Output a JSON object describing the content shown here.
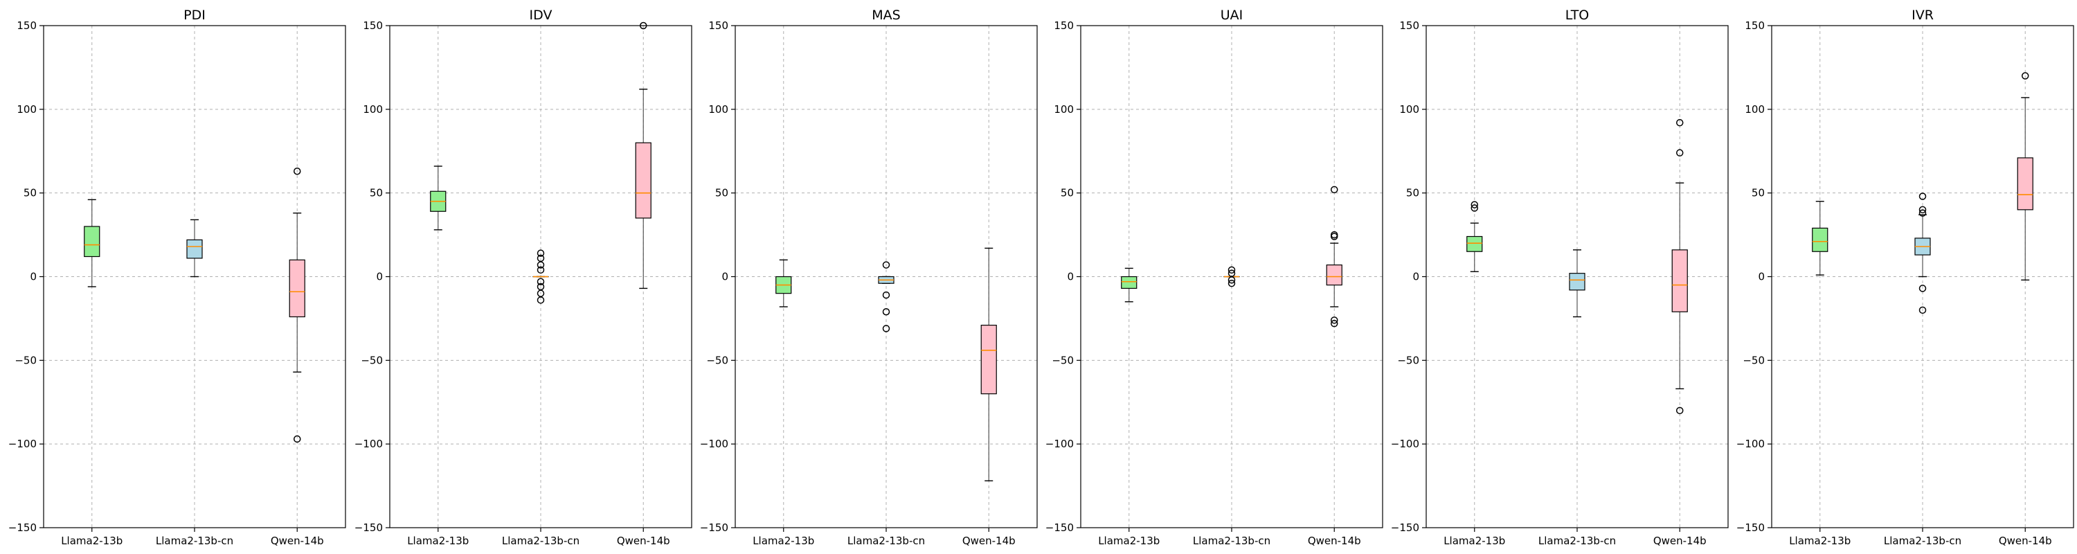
{
  "chart_data": [
    {
      "type": "box",
      "title": "PDI",
      "categories": [
        "Llama2-13b",
        "Llama2-13b-cn",
        "Qwen-14b"
      ],
      "ylim": [
        -150,
        150
      ],
      "yticks": [
        -150,
        -100,
        -50,
        0,
        50,
        100,
        150
      ],
      "grid": true,
      "box_colors": [
        "#90EE90",
        "#ADD8E6",
        "#FFC0CB"
      ],
      "median_color": "#FF8C00",
      "series": [
        {
          "whisker_low": -6,
          "q1": 12,
          "median": 19,
          "q3": 30,
          "whisker_high": 46,
          "outliers": []
        },
        {
          "whisker_low": 0,
          "q1": 11,
          "median": 18,
          "q3": 22,
          "whisker_high": 34,
          "outliers": []
        },
        {
          "whisker_low": -57,
          "q1": -24,
          "median": -9,
          "q3": 10,
          "whisker_high": 38,
          "outliers": [
            63,
            -97
          ]
        }
      ]
    },
    {
      "type": "box",
      "title": "IDV",
      "categories": [
        "Llama2-13b",
        "Llama2-13b-cn",
        "Qwen-14b"
      ],
      "ylim": [
        -150,
        150
      ],
      "yticks": [
        -150,
        -100,
        -50,
        0,
        50,
        100,
        150
      ],
      "grid": true,
      "box_colors": [
        "#90EE90",
        "#ADD8E6",
        "#FFC0CB"
      ],
      "median_color": "#FF8C00",
      "series": [
        {
          "whisker_low": 28,
          "q1": 39,
          "median": 45,
          "q3": 51,
          "whisker_high": 66,
          "outliers": []
        },
        {
          "whisker_low": 0,
          "q1": 0,
          "median": 0,
          "q3": 0,
          "whisker_high": 0,
          "outliers": [
            14,
            11,
            7,
            4,
            -3,
            -6,
            -10,
            -14
          ]
        },
        {
          "whisker_low": -7,
          "q1": 35,
          "median": 50,
          "q3": 80,
          "whisker_high": 112,
          "outliers": [
            150
          ]
        }
      ]
    },
    {
      "type": "box",
      "title": "MAS",
      "categories": [
        "Llama2-13b",
        "Llama2-13b-cn",
        "Qwen-14b"
      ],
      "ylim": [
        -150,
        150
      ],
      "yticks": [
        -150,
        -100,
        -50,
        0,
        50,
        100,
        150
      ],
      "grid": true,
      "box_colors": [
        "#90EE90",
        "#ADD8E6",
        "#FFC0CB"
      ],
      "median_color": "#FF8C00",
      "series": [
        {
          "whisker_low": -18,
          "q1": -10,
          "median": -5,
          "q3": 0,
          "whisker_high": 10,
          "outliers": []
        },
        {
          "whisker_low": -4,
          "q1": -4,
          "median": -2,
          "q3": 0,
          "whisker_high": 0,
          "outliers": [
            7,
            -11,
            -21,
            -31
          ]
        },
        {
          "whisker_low": -122,
          "q1": -70,
          "median": -44,
          "q3": -29,
          "whisker_high": 17,
          "outliers": []
        }
      ]
    },
    {
      "type": "box",
      "title": "UAI",
      "categories": [
        "Llama2-13b",
        "Llama2-13b-cn",
        "Qwen-14b"
      ],
      "ylim": [
        -150,
        150
      ],
      "yticks": [
        -150,
        -100,
        -50,
        0,
        50,
        100,
        150
      ],
      "grid": true,
      "box_colors": [
        "#90EE90",
        "#ADD8E6",
        "#FFC0CB"
      ],
      "median_color": "#FF8C00",
      "series": [
        {
          "whisker_low": -15,
          "q1": -7,
          "median": -3,
          "q3": 0,
          "whisker_high": 5,
          "outliers": []
        },
        {
          "whisker_low": 0,
          "q1": 0,
          "median": 0,
          "q3": 0,
          "whisker_high": 0,
          "outliers": [
            4,
            2,
            -2,
            -4
          ]
        },
        {
          "whisker_low": -18,
          "q1": -5,
          "median": 0,
          "q3": 7,
          "whisker_high": 20,
          "outliers": [
            52,
            25,
            24,
            -26,
            -28
          ]
        }
      ]
    },
    {
      "type": "box",
      "title": "LTO",
      "categories": [
        "Llama2-13b",
        "Llama2-13b-cn",
        "Qwen-14b"
      ],
      "ylim": [
        -150,
        150
      ],
      "yticks": [
        -150,
        -100,
        -50,
        0,
        50,
        100,
        150
      ],
      "grid": true,
      "box_colors": [
        "#90EE90",
        "#ADD8E6",
        "#FFC0CB"
      ],
      "median_color": "#FF8C00",
      "series": [
        {
          "whisker_low": 3,
          "q1": 15,
          "median": 20,
          "q3": 24,
          "whisker_high": 32,
          "outliers": [
            43,
            41
          ]
        },
        {
          "whisker_low": -24,
          "q1": -8,
          "median": -2,
          "q3": 2,
          "whisker_high": 16,
          "outliers": []
        },
        {
          "whisker_low": -67,
          "q1": -21,
          "median": -5,
          "q3": 16,
          "whisker_high": 56,
          "outliers": [
            92,
            74,
            -80
          ]
        }
      ]
    },
    {
      "type": "box",
      "title": "IVR",
      "categories": [
        "Llama2-13b",
        "Llama2-13b-cn",
        "Qwen-14b"
      ],
      "ylim": [
        -150,
        150
      ],
      "yticks": [
        -150,
        -100,
        -50,
        0,
        50,
        100,
        150
      ],
      "grid": true,
      "box_colors": [
        "#90EE90",
        "#ADD8E6",
        "#FFC0CB"
      ],
      "median_color": "#FF8C00",
      "series": [
        {
          "whisker_low": 1,
          "q1": 15,
          "median": 21,
          "q3": 29,
          "whisker_high": 45,
          "outliers": []
        },
        {
          "whisker_low": 0,
          "q1": 13,
          "median": 18,
          "q3": 23,
          "whisker_high": 37,
          "outliers": [
            48,
            40,
            38,
            -7,
            -20
          ]
        },
        {
          "whisker_low": -2,
          "q1": 40,
          "median": 49,
          "q3": 71,
          "whisker_high": 107,
          "outliers": [
            120
          ]
        }
      ]
    }
  ]
}
